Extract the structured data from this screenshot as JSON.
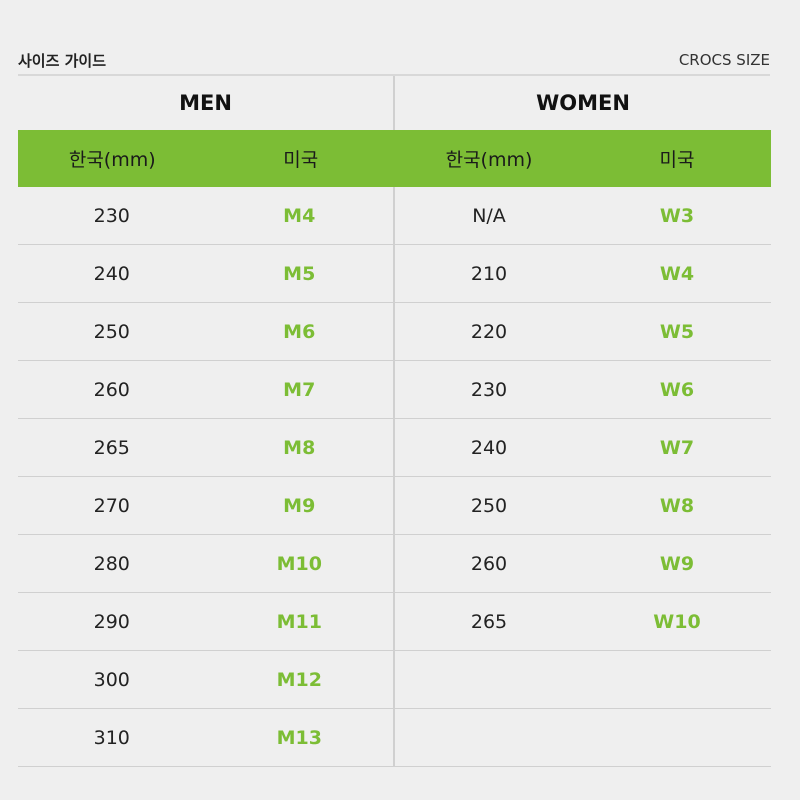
{
  "header": {
    "title": "사이즈 가이드",
    "brand": "CROCS SIZE"
  },
  "sections": {
    "men": "MEN",
    "women": "WOMEN"
  },
  "columns": {
    "kr": "한국(mm)",
    "us": "미국"
  },
  "accent": "#7cbd35",
  "men": [
    [
      "230",
      "M4"
    ],
    [
      "240",
      "M5"
    ],
    [
      "250",
      "M6"
    ],
    [
      "260",
      "M7"
    ],
    [
      "265",
      "M8"
    ],
    [
      "270",
      "M9"
    ],
    [
      "280",
      "M10"
    ],
    [
      "290",
      "M11"
    ],
    [
      "300",
      "M12"
    ],
    [
      "310",
      "M13"
    ]
  ],
  "women": [
    [
      "N/A",
      "W3"
    ],
    [
      "210",
      "W4"
    ],
    [
      "220",
      "W5"
    ],
    [
      "230",
      "W6"
    ],
    [
      "240",
      "W7"
    ],
    [
      "250",
      "W8"
    ],
    [
      "260",
      "W9"
    ],
    [
      "265",
      "W10"
    ]
  ]
}
